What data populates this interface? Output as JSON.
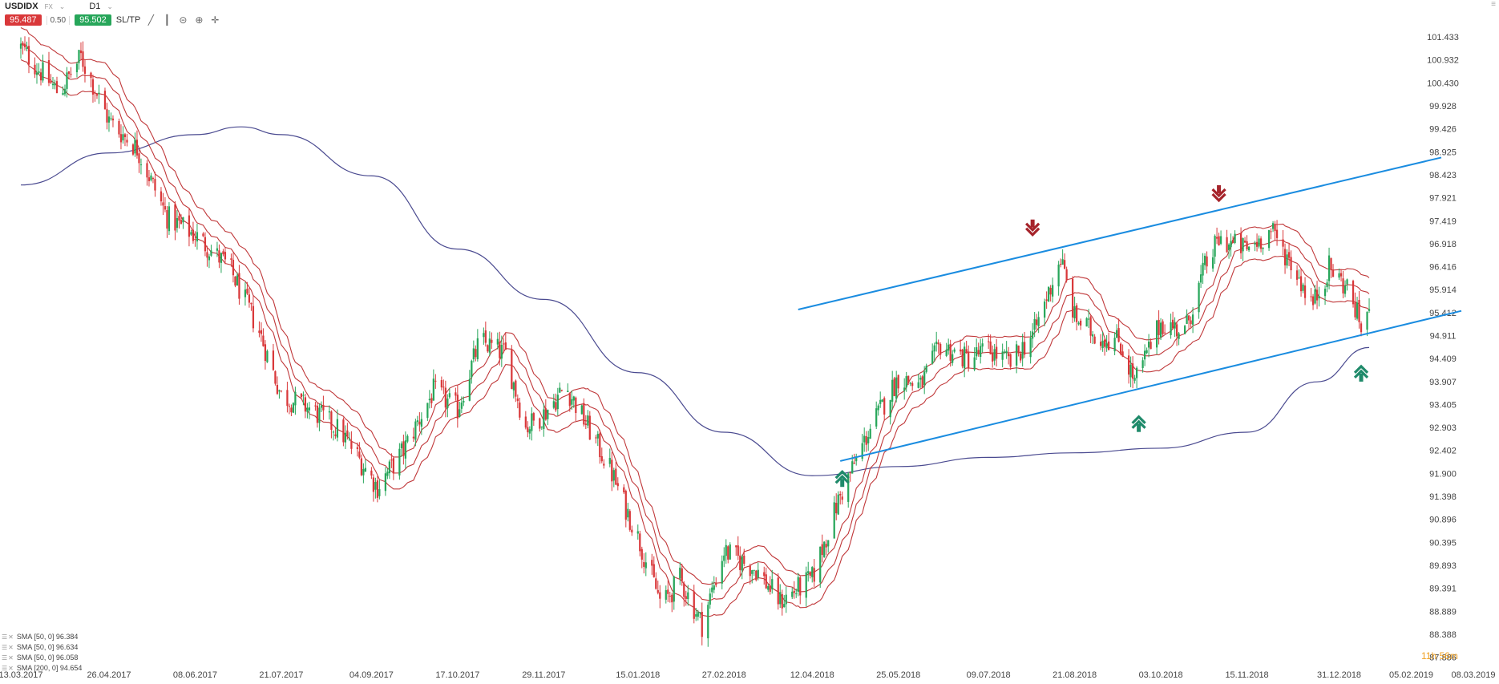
{
  "toolbar": {
    "symbol": "USDIDX",
    "symbol_tag": "FX",
    "timeframe": "D1",
    "sell_price": "95.487",
    "spread": "0.50",
    "buy_price": "95.502",
    "sltp_label": "SL/TP",
    "icons": [
      "line-chart-icon",
      "candles-icon",
      "zoom-out-icon",
      "zoom-in-icon",
      "crosshair-icon"
    ]
  },
  "timer": {
    "hours": "11h",
    "minutes": "56m"
  },
  "legend": [
    "SMA [50, 0] 96.384",
    "SMA [50, 0] 96.634",
    "SMA [50, 0] 96.058",
    "SMA [200, 0] 94.654"
  ],
  "colors": {
    "bull": "#27a65a",
    "bear": "#d9383a",
    "envelope": "#c0383a",
    "sma200": "#4a4a90",
    "channel": "#1a8ce0",
    "arrow_up": "#1f8a6a",
    "arrow_down": "#a6242b"
  },
  "chart_data": {
    "type": "candlestick",
    "symbol": "USDIDX",
    "timeframe": "D1",
    "ylim": [
      87.65,
      101.75
    ],
    "y_ticks": [
      "101.433",
      "100.932",
      "100.430",
      "99.928",
      "99.426",
      "98.925",
      "98.423",
      "97.921",
      "97.419",
      "96.918",
      "96.416",
      "95.914",
      "95.412",
      "94.911",
      "94.409",
      "93.907",
      "93.405",
      "92.903",
      "92.402",
      "91.900",
      "91.398",
      "90.896",
      "90.395",
      "89.893",
      "89.391",
      "88.889",
      "88.388",
      "87.886"
    ],
    "x_ticks": [
      "13.03.2017",
      "26.04.2017",
      "08.06.2017",
      "21.07.2017",
      "04.09.2017",
      "17.10.2017",
      "29.11.2017",
      "15.01.2018",
      "27.02.2018",
      "12.04.2018",
      "25.05.2018",
      "09.07.2018",
      "21.08.2018",
      "03.10.2018",
      "15.11.2018",
      "31.12.2018",
      "05.02.2019",
      "08.03.2019"
    ],
    "x_range": [
      "2017-03-13",
      "2019-03-08"
    ],
    "last_close": 95.49,
    "price_path": [
      {
        "date": "2017-03-13",
        "price": 101.2
      },
      {
        "date": "2017-04-01",
        "price": 100.2
      },
      {
        "date": "2017-04-12",
        "price": 101.0
      },
      {
        "date": "2017-04-26",
        "price": 99.6
      },
      {
        "date": "2017-05-10",
        "price": 99.0
      },
      {
        "date": "2017-05-25",
        "price": 97.5
      },
      {
        "date": "2017-06-08",
        "price": 97.1
      },
      {
        "date": "2017-06-25",
        "price": 96.4
      },
      {
        "date": "2017-07-10",
        "price": 95.0
      },
      {
        "date": "2017-07-21",
        "price": 93.6
      },
      {
        "date": "2017-08-05",
        "price": 93.3
      },
      {
        "date": "2017-08-20",
        "price": 92.8
      },
      {
        "date": "2017-09-07",
        "price": 91.6
      },
      {
        "date": "2017-09-20",
        "price": 92.4
      },
      {
        "date": "2017-10-05",
        "price": 93.7
      },
      {
        "date": "2017-10-17",
        "price": 93.3
      },
      {
        "date": "2017-10-28",
        "price": 94.8
      },
      {
        "date": "2017-11-10",
        "price": 94.5
      },
      {
        "date": "2017-11-20",
        "price": 92.9
      },
      {
        "date": "2017-11-29",
        "price": 93.2
      },
      {
        "date": "2017-12-10",
        "price": 93.8
      },
      {
        "date": "2017-12-20",
        "price": 93.0
      },
      {
        "date": "2018-01-01",
        "price": 92.0
      },
      {
        "date": "2018-01-15",
        "price": 90.5
      },
      {
        "date": "2018-01-27",
        "price": 89.0
      },
      {
        "date": "2018-02-05",
        "price": 89.6
      },
      {
        "date": "2018-02-16",
        "price": 88.6
      },
      {
        "date": "2018-02-27",
        "price": 90.2
      },
      {
        "date": "2018-03-15",
        "price": 89.8
      },
      {
        "date": "2018-03-27",
        "price": 89.1
      },
      {
        "date": "2018-04-12",
        "price": 89.6
      },
      {
        "date": "2018-04-25",
        "price": 91.3
      },
      {
        "date": "2018-05-10",
        "price": 92.8
      },
      {
        "date": "2018-05-25",
        "price": 94.0
      },
      {
        "date": "2018-06-05",
        "price": 93.8
      },
      {
        "date": "2018-06-15",
        "price": 94.7
      },
      {
        "date": "2018-06-28",
        "price": 94.4
      },
      {
        "date": "2018-07-09",
        "price": 94.6
      },
      {
        "date": "2018-07-20",
        "price": 94.3
      },
      {
        "date": "2018-08-01",
        "price": 95.0
      },
      {
        "date": "2018-08-14",
        "price": 96.6
      },
      {
        "date": "2018-08-21",
        "price": 95.3
      },
      {
        "date": "2018-09-01",
        "price": 94.9
      },
      {
        "date": "2018-09-12",
        "price": 94.8
      },
      {
        "date": "2018-09-20",
        "price": 93.9
      },
      {
        "date": "2018-10-03",
        "price": 95.2
      },
      {
        "date": "2018-10-15",
        "price": 95.0
      },
      {
        "date": "2018-10-25",
        "price": 96.4
      },
      {
        "date": "2018-11-01",
        "price": 97.0
      },
      {
        "date": "2018-11-15",
        "price": 96.8
      },
      {
        "date": "2018-11-27",
        "price": 97.2
      },
      {
        "date": "2018-12-07",
        "price": 96.5
      },
      {
        "date": "2018-12-18",
        "price": 95.6
      },
      {
        "date": "2018-12-26",
        "price": 96.4
      },
      {
        "date": "2019-01-05",
        "price": 95.9
      },
      {
        "date": "2019-01-11",
        "price": 95.1
      },
      {
        "date": "2019-01-15",
        "price": 95.49
      }
    ],
    "sma_200": [
      {
        "date": "2017-03-13",
        "price": 98.2
      },
      {
        "date": "2017-04-26",
        "price": 98.9
      },
      {
        "date": "2017-06-08",
        "price": 99.3
      },
      {
        "date": "2017-07-01",
        "price": 99.47
      },
      {
        "date": "2017-07-21",
        "price": 99.3
      },
      {
        "date": "2017-09-04",
        "price": 98.4
      },
      {
        "date": "2017-10-17",
        "price": 96.8
      },
      {
        "date": "2017-11-29",
        "price": 95.7
      },
      {
        "date": "2018-01-15",
        "price": 94.1
      },
      {
        "date": "2018-02-27",
        "price": 92.8
      },
      {
        "date": "2018-04-12",
        "price": 91.85
      },
      {
        "date": "2018-05-25",
        "price": 92.05
      },
      {
        "date": "2018-07-09",
        "price": 92.25
      },
      {
        "date": "2018-08-21",
        "price": 92.35
      },
      {
        "date": "2018-10-03",
        "price": 92.45
      },
      {
        "date": "2018-11-15",
        "price": 92.8
      },
      {
        "date": "2018-12-20",
        "price": 93.9
      },
      {
        "date": "2019-01-15",
        "price": 94.65
      }
    ],
    "sma_50_envelope": {
      "upper": 96.634,
      "middle": 96.384,
      "lower": 96.058
    },
    "channel_upper": {
      "start": {
        "date": "2018-04-05",
        "price": 95.48
      },
      "end": {
        "date": "2019-02-20",
        "price": 98.8
      }
    },
    "channel_lower": {
      "start": {
        "date": "2018-04-26",
        "price": 92.17
      },
      "end": {
        "date": "2019-03-02",
        "price": 95.45
      }
    },
    "markers": [
      {
        "type": "sell",
        "date": "2018-07-31",
        "price": 97.2
      },
      {
        "type": "sell",
        "date": "2018-11-01",
        "price": 97.95
      },
      {
        "type": "buy",
        "date": "2018-04-27",
        "price": 91.85
      },
      {
        "type": "buy",
        "date": "2018-09-22",
        "price": 93.05
      },
      {
        "type": "buy",
        "date": "2019-01-11",
        "price": 94.15
      }
    ]
  }
}
